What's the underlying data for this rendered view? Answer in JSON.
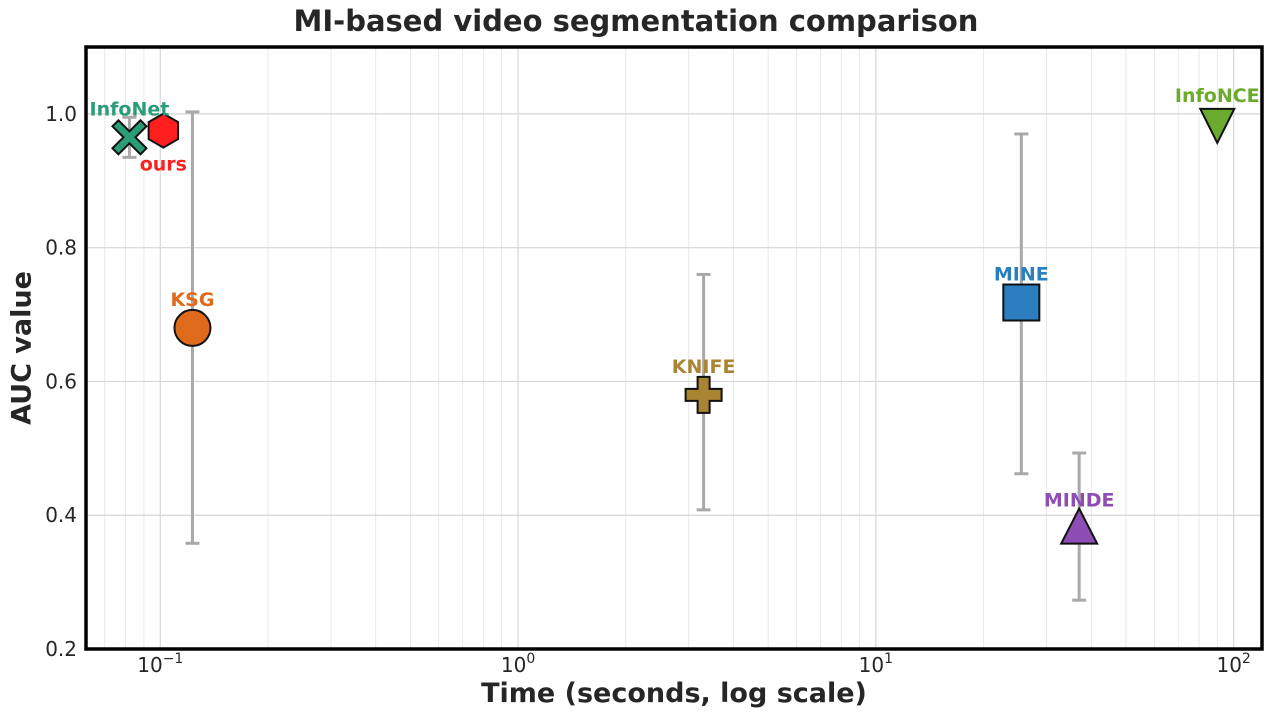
{
  "chart_data": {
    "type": "scatter",
    "title": "MI-based video segmentation comparison",
    "xlabel": "Time (seconds, log scale)",
    "ylabel": "AUC value",
    "xscale": "log",
    "xlim": [
      0.062,
      120
    ],
    "ylim": [
      0.2,
      1.1
    ],
    "x_ticks": [
      {
        "value": 0.1,
        "base": "10",
        "exp": "−1"
      },
      {
        "value": 1,
        "base": "10",
        "exp": "0"
      },
      {
        "value": 10,
        "base": "10",
        "exp": "1"
      },
      {
        "value": 100,
        "base": "10",
        "exp": "2"
      }
    ],
    "y_ticks": [
      0.2,
      0.4,
      0.6,
      0.8,
      1.0
    ],
    "y_tick_labels": [
      "0.2",
      "0.4",
      "0.6",
      "0.8",
      "1.0"
    ],
    "grid": true,
    "points": [
      {
        "label": "InfoNet",
        "x": 0.082,
        "y": 0.965,
        "err_low": 0.935,
        "err_high": 0.995,
        "marker": "x",
        "color": "#2a9d78",
        "label_pos": "above"
      },
      {
        "label": "ours",
        "x": 0.102,
        "y": 0.975,
        "err_low": null,
        "err_high": null,
        "marker": "hexagon",
        "color": "#ff1f1f",
        "label_pos": "below"
      },
      {
        "label": "KSG",
        "x": 0.123,
        "y": 0.68,
        "err_low": 0.358,
        "err_high": 1.003,
        "marker": "circle",
        "color": "#e06a1b",
        "label_pos": "above"
      },
      {
        "label": "KNIFE",
        "x": 3.3,
        "y": 0.58,
        "err_low": 0.408,
        "err_high": 0.76,
        "marker": "plus",
        "color": "#a98433",
        "label_pos": "above"
      },
      {
        "label": "MINE",
        "x": 25.5,
        "y": 0.718,
        "err_low": 0.462,
        "err_high": 0.97,
        "marker": "square",
        "color": "#2b7fc0",
        "label_pos": "above"
      },
      {
        "label": "MINDE",
        "x": 37,
        "y": 0.38,
        "err_low": 0.273,
        "err_high": 0.493,
        "marker": "triangle-up",
        "color": "#8e4cb5",
        "label_pos": "above"
      },
      {
        "label": "InfoNCE",
        "x": 90,
        "y": 0.985,
        "err_low": null,
        "err_high": null,
        "marker": "triangle-down",
        "color": "#6aaa2d",
        "label_pos": "above"
      }
    ]
  }
}
